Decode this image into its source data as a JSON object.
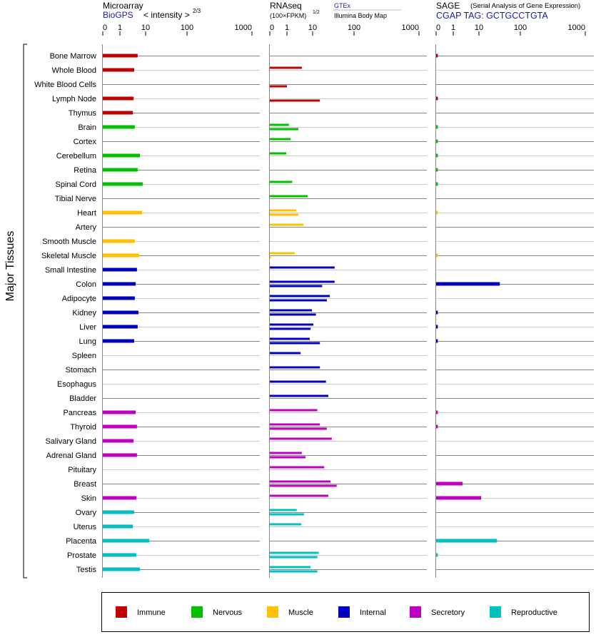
{
  "chart_data": {
    "type": "bar",
    "ylabel": "Major Tissues",
    "panels": [
      {
        "key": "microarray",
        "title": "Microarray",
        "subtitle": "BioGPS",
        "scale_note": "< intensity >",
        "scale_exp": "2/3"
      },
      {
        "key": "rnaseq",
        "title": "RNAseq",
        "scale_note": "(100×FPKM)",
        "scale_exp": "1/2",
        "source_top": "GTEx",
        "source_bottom": "Illumina Body Map"
      },
      {
        "key": "sage",
        "title": "SAGE",
        "title_note": "(Serial Analysis of Gene Expression)",
        "subtitle": "CGAP TAG: GCTGCCTGTA"
      }
    ],
    "ticks": [
      "0",
      "1",
      "10",
      "100",
      "1000"
    ],
    "tick_values": [
      0,
      1,
      10,
      100,
      1000
    ],
    "xlim": [
      0,
      1000
    ],
    "groups": [
      {
        "name": "Immune",
        "color": "#c00000"
      },
      {
        "name": "Nervous",
        "color": "#00c000"
      },
      {
        "name": "Muscle",
        "color": "#ffc000"
      },
      {
        "name": "Internal",
        "color": "#0000c0"
      },
      {
        "name": "Secretory",
        "color": "#c000c0"
      },
      {
        "name": "Reproductive",
        "color": "#00c0c0"
      }
    ],
    "legend_position": "bottom",
    "tissues": [
      {
        "name": "Bone Marrow",
        "group": 0,
        "microarray": 4.9,
        "gtex": null,
        "illumina": null,
        "sage": 0.1
      },
      {
        "name": "Whole Blood",
        "group": 0,
        "microarray": 3.6,
        "gtex": 3.8,
        "illumina": null,
        "sage": null
      },
      {
        "name": "White Blood Cells",
        "group": 0,
        "microarray": null,
        "gtex": null,
        "illumina": 1.0,
        "sage": null
      },
      {
        "name": "Lymph Node",
        "group": 0,
        "microarray": 3.4,
        "gtex": null,
        "illumina": 15,
        "sage": 0.1
      },
      {
        "name": "Thymus",
        "group": 0,
        "microarray": 3.2,
        "gtex": null,
        "illumina": null,
        "sage": null
      },
      {
        "name": "Brain",
        "group": 1,
        "microarray": 3.8,
        "gtex": 1.2,
        "illumina": 2.8,
        "sage": 0.1
      },
      {
        "name": "Cortex",
        "group": 1,
        "microarray": null,
        "gtex": 1.4,
        "illumina": null,
        "sage": 0.1
      },
      {
        "name": "Cerebellum",
        "group": 1,
        "microarray": 6.0,
        "gtex": 0.96,
        "illumina": null,
        "sage": 0.1
      },
      {
        "name": "Retina",
        "group": 1,
        "microarray": 4.9,
        "gtex": null,
        "illumina": null,
        "sage": 0.1
      },
      {
        "name": "Spinal Cord",
        "group": 1,
        "microarray": 7.7,
        "gtex": 1.6,
        "illumina": null,
        "sage": 0.1
      },
      {
        "name": "Tibial Nerve",
        "group": 1,
        "microarray": null,
        "gtex": 6.4,
        "illumina": null,
        "sage": null
      },
      {
        "name": "Heart",
        "group": 2,
        "microarray": 7.3,
        "gtex": 2.3,
        "illumina": 2.8,
        "sage": 0.1
      },
      {
        "name": "Artery",
        "group": 2,
        "microarray": null,
        "gtex": 4.4,
        "illumina": null,
        "sage": null
      },
      {
        "name": "Smooth Muscle",
        "group": 2,
        "microarray": 3.8,
        "gtex": null,
        "illumina": null,
        "sage": null
      },
      {
        "name": "Skeletal Muscle",
        "group": 2,
        "microarray": 5.6,
        "gtex": 2.0,
        "illumina": 0.04,
        "sage": 0.1
      },
      {
        "name": "Small Intestine",
        "group": 3,
        "microarray": 4.6,
        "gtex": 34,
        "illumina": null,
        "sage": null
      },
      {
        "name": "Colon",
        "group": 3,
        "microarray": 4.1,
        "gtex": 34,
        "illumina": 17,
        "sage": 32
      },
      {
        "name": "Adipocyte",
        "group": 3,
        "microarray": 3.8,
        "gtex": 26,
        "illumina": 22,
        "sage": null
      },
      {
        "name": "Kidney",
        "group": 3,
        "microarray": 5.3,
        "gtex": 9.4,
        "illumina": 12,
        "sage": 0.1
      },
      {
        "name": "Liver",
        "group": 3,
        "microarray": 4.9,
        "gtex": 10.4,
        "illumina": 8.3,
        "sage": 0.1
      },
      {
        "name": "Lung",
        "group": 3,
        "microarray": 3.6,
        "gtex": 7.7,
        "illumina": 15,
        "sage": 0.1
      },
      {
        "name": "Spleen",
        "group": 3,
        "microarray": null,
        "gtex": 3.4,
        "illumina": null,
        "sage": null
      },
      {
        "name": "Stomach",
        "group": 3,
        "microarray": null,
        "gtex": 15,
        "illumina": null,
        "sage": null
      },
      {
        "name": "Esophagus",
        "group": 3,
        "microarray": null,
        "gtex": 21,
        "illumina": null,
        "sage": null
      },
      {
        "name": "Bladder",
        "group": 3,
        "microarray": null,
        "gtex": 24,
        "illumina": null,
        "sage": null
      },
      {
        "name": "Pancreas",
        "group": 4,
        "microarray": 4.1,
        "gtex": 13,
        "illumina": null,
        "sage": 0.1
      },
      {
        "name": "Thyroid",
        "group": 4,
        "microarray": 4.6,
        "gtex": 15,
        "illumina": 22,
        "sage": 0.1
      },
      {
        "name": "Salivary Gland",
        "group": 4,
        "microarray": 3.4,
        "gtex": 29,
        "illumina": null,
        "sage": null
      },
      {
        "name": "Adrenal Gland",
        "group": 4,
        "microarray": 4.6,
        "gtex": 3.8,
        "illumina": 5.3,
        "sage": null
      },
      {
        "name": "Pituitary",
        "group": 4,
        "microarray": null,
        "gtex": 19,
        "illumina": null,
        "sage": null
      },
      {
        "name": "Breast",
        "group": 4,
        "microarray": null,
        "gtex": 27,
        "illumina": 38,
        "sage": 2.3
      },
      {
        "name": "Skin",
        "group": 4,
        "microarray": 4.4,
        "gtex": 24,
        "illumina": null,
        "sage": 11.3
      },
      {
        "name": "Ovary",
        "group": 5,
        "microarray": 3.6,
        "gtex": 2.4,
        "illumina": 4.6,
        "sage": null
      },
      {
        "name": "Uterus",
        "group": 5,
        "microarray": 3.2,
        "gtex": 3.6,
        "illumina": null,
        "sage": null
      },
      {
        "name": "Placenta",
        "group": 5,
        "microarray": 12.2,
        "gtex": null,
        "illumina": null,
        "sage": 27
      },
      {
        "name": "Prostate",
        "group": 5,
        "microarray": 4.4,
        "gtex": 14,
        "illumina": 13,
        "sage": 0.1
      },
      {
        "name": "Testis",
        "group": 5,
        "microarray": 6.0,
        "gtex": 8.3,
        "illumina": 13,
        "sage": null
      }
    ]
  }
}
